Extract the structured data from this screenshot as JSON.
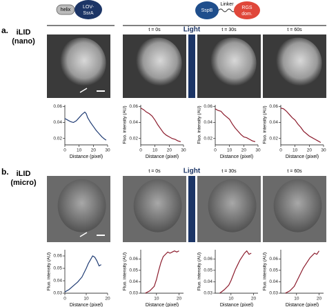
{
  "header": {
    "left_construct": [
      "helix",
      "LOV-",
      "SsrA"
    ],
    "right_construct": [
      "SspB",
      "Linker",
      "RGS",
      "dom."
    ]
  },
  "panels": [
    {
      "letter": "a.",
      "name": "iLID",
      "sub": "(nano)",
      "light": "Light",
      "times": [
        "t = 0s",
        "t = 30s",
        "t = 60s"
      ]
    },
    {
      "letter": "b.",
      "name": "iLID",
      "sub": "(micro)",
      "light": "Light",
      "times": [
        "t = 0s",
        "t = 30s",
        "t = 60s"
      ]
    }
  ],
  "chart_data": [
    {
      "type": "line",
      "xlabel": "Distance (pixel)",
      "x": [
        0,
        2,
        4,
        6,
        8,
        10,
        12,
        14,
        15,
        16,
        18,
        20,
        22,
        24,
        26,
        28,
        29
      ],
      "values": [
        0.045,
        0.043,
        0.041,
        0.04,
        0.042,
        0.046,
        0.05,
        0.053,
        0.051,
        0.046,
        0.04,
        0.035,
        0.03,
        0.026,
        0.022,
        0.019,
        0.018
      ],
      "color": "#1f3b73",
      "xlim": [
        0,
        30
      ],
      "ylim": [
        0.012,
        0.062
      ],
      "xticks": [
        0,
        10,
        20,
        30
      ],
      "yticks": [
        0.02,
        0.04,
        0.06
      ]
    },
    {
      "type": "line",
      "xlabel": "Distance (pixel)",
      "ylabel": "Fluo. intensity (AU)",
      "x": [
        0,
        2,
        4,
        6,
        8,
        10,
        12,
        14,
        16,
        18,
        20,
        22,
        24,
        26,
        28
      ],
      "values": [
        0.058,
        0.056,
        0.053,
        0.051,
        0.048,
        0.043,
        0.037,
        0.032,
        0.027,
        0.024,
        0.022,
        0.02,
        0.019,
        0.017,
        0.016
      ],
      "color": "#8b1a2b",
      "xlim": [
        0,
        30
      ],
      "ylim": [
        0.012,
        0.062
      ],
      "xticks": [
        0,
        10,
        20,
        30
      ],
      "yticks": [
        0.02,
        0.04,
        0.06
      ]
    },
    {
      "type": "line",
      "xlabel": "Distance (pixel)",
      "ylabel": "Fluo. intensity (AU)",
      "x": [
        0,
        2,
        4,
        6,
        8,
        10,
        12,
        14,
        16,
        18,
        20,
        22,
        24,
        26,
        28
      ],
      "values": [
        0.057,
        0.055,
        0.054,
        0.05,
        0.047,
        0.044,
        0.038,
        0.033,
        0.029,
        0.025,
        0.022,
        0.021,
        0.019,
        0.017,
        0.016
      ],
      "color": "#8b1a2b",
      "xlim": [
        0,
        30
      ],
      "ylim": [
        0.012,
        0.062
      ],
      "xticks": [
        0,
        10,
        20,
        30
      ],
      "yticks": [
        0.02,
        0.04,
        0.06
      ]
    },
    {
      "type": "line",
      "xlabel": "Distance (pixel)",
      "ylabel": "Fluo. intensity (AU)",
      "x": [
        0,
        2,
        4,
        6,
        8,
        10,
        12,
        14,
        16,
        18,
        20,
        22,
        24,
        26,
        28
      ],
      "values": [
        0.058,
        0.057,
        0.054,
        0.05,
        0.046,
        0.043,
        0.038,
        0.034,
        0.029,
        0.026,
        0.023,
        0.021,
        0.019,
        0.017,
        0.015
      ],
      "color": "#8b1a2b",
      "xlim": [
        0,
        30
      ],
      "ylim": [
        0.012,
        0.062
      ],
      "xticks": [
        0,
        10,
        20,
        30
      ],
      "yticks": [
        0.02,
        0.04,
        0.06
      ]
    },
    {
      "type": "line",
      "xlabel": "Distance (pixel)",
      "ylabel": "Fluo. intensity (AU)",
      "x": [
        0,
        2,
        4,
        6,
        8,
        10,
        11,
        12,
        13,
        14,
        15,
        16,
        17
      ],
      "values": [
        0.031,
        0.033,
        0.036,
        0.039,
        0.043,
        0.05,
        0.054,
        0.057,
        0.06,
        0.059,
        0.056,
        0.052,
        0.053
      ],
      "color": "#1f3b73",
      "xlim": [
        0,
        20
      ],
      "ylim": [
        0.03,
        0.065
      ],
      "xticks": [
        0,
        10,
        20
      ],
      "yticks": [
        0.03,
        0.04,
        0.05,
        0.06
      ]
    },
    {
      "type": "line",
      "xlabel": "Distance (pixel)",
      "ylabel": "Fluo. intensity (AU)",
      "x": [
        5,
        7,
        9,
        10,
        11,
        12,
        13,
        14,
        15,
        16,
        17,
        18,
        19,
        20
      ],
      "values": [
        0.03,
        0.032,
        0.036,
        0.042,
        0.05,
        0.057,
        0.062,
        0.064,
        0.066,
        0.065,
        0.066,
        0.067,
        0.066,
        0.067
      ],
      "color": "#8b1a2b",
      "xlim": [
        3,
        22
      ],
      "ylim": [
        0.03,
        0.068
      ],
      "xticks": [
        10,
        20
      ],
      "yticks": [
        0.03,
        0.04,
        0.05,
        0.06
      ]
    },
    {
      "type": "line",
      "xlabel": "Distance (pixel)",
      "ylabel": "Fluo. intensity (AU)",
      "x": [
        5,
        7,
        9,
        10,
        11,
        12,
        13,
        14,
        15,
        16,
        17,
        18,
        19
      ],
      "values": [
        0.03,
        0.033,
        0.037,
        0.041,
        0.046,
        0.051,
        0.055,
        0.059,
        0.062,
        0.065,
        0.067,
        0.064,
        0.065
      ],
      "color": "#8b1a2b",
      "xlim": [
        3,
        22
      ],
      "ylim": [
        0.03,
        0.068
      ],
      "xticks": [
        10,
        20
      ],
      "yticks": [
        0.03,
        0.04,
        0.05,
        0.06
      ]
    },
    {
      "type": "line",
      "xlabel": "Distance (pixel)",
      "ylabel": "Fluo. intensity (AU)",
      "x": [
        5,
        7,
        9,
        10,
        11,
        12,
        13,
        14,
        15,
        16,
        17,
        18,
        19,
        20
      ],
      "values": [
        0.03,
        0.032,
        0.036,
        0.04,
        0.044,
        0.048,
        0.052,
        0.055,
        0.058,
        0.061,
        0.063,
        0.065,
        0.064,
        0.067
      ],
      "color": "#8b1a2b",
      "xlim": [
        3,
        22
      ],
      "ylim": [
        0.03,
        0.068
      ],
      "xticks": [
        10,
        20
      ],
      "yticks": [
        0.03,
        0.04,
        0.05,
        0.06
      ]
    }
  ]
}
